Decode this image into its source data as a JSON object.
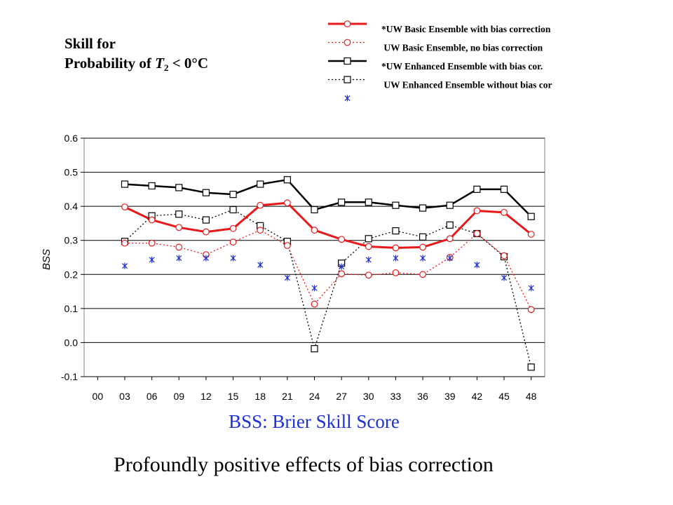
{
  "title": {
    "line1": "Skill for",
    "line2_prefix": "Probability of ",
    "line2_var": "T",
    "line2_sub": "2",
    "line2_suffix": " < 0°C"
  },
  "captions": {
    "bss": "BSS:  Brier Skill Score",
    "effect": "Profoundly positive effects of bias correction"
  },
  "colors": {
    "red": "#e8191b",
    "black": "#000000",
    "blue": "#1a2bd0",
    "grid": "#000000"
  },
  "legend": [
    {
      "label": "*UW Basic Ensemble with bias correction",
      "style": "red-solid-circle"
    },
    {
      "label": " UW Basic Ensemble, no bias correction",
      "style": "red-dotted-circle"
    },
    {
      "label": "*UW Enhanced Ensemble with bias cor.",
      "style": "black-solid-square"
    },
    {
      "label": " UW Enhanced Ensemble without bias cor",
      "style": "black-dotted-square"
    },
    {
      "label": "",
      "style": "blue-asterisk"
    }
  ],
  "chart_data": {
    "type": "line",
    "ylabel": "BSS",
    "xlabel": "",
    "ylim": [
      -0.1,
      0.6
    ],
    "yticks": [
      "-0.1",
      "0.0",
      "0.1",
      "0.2",
      "0.3",
      "0.4",
      "0.5",
      "0.6"
    ],
    "categories": [
      "00",
      "03",
      "06",
      "09",
      "12",
      "15",
      "18",
      "21",
      "24",
      "27",
      "30",
      "33",
      "36",
      "39",
      "42",
      "45",
      "48"
    ],
    "grid": "horizontal",
    "series": [
      {
        "name": "*UW Enhanced Ensemble with bias cor.",
        "style": "black-solid-square",
        "values": [
          null,
          0.465,
          0.46,
          0.455,
          0.44,
          0.435,
          0.465,
          0.478,
          0.39,
          0.412,
          0.412,
          0.403,
          0.395,
          0.403,
          0.45,
          0.45,
          0.37
        ]
      },
      {
        "name": "*UW Basic Ensemble with bias correction",
        "style": "red-solid-circle",
        "values": [
          null,
          0.398,
          0.36,
          0.338,
          0.325,
          0.335,
          0.403,
          0.41,
          0.33,
          0.303,
          0.282,
          0.278,
          0.28,
          0.305,
          0.387,
          0.382,
          0.318
        ]
      },
      {
        "name": "UW Basic Ensemble, no bias correction",
        "style": "red-dotted-circle",
        "values": [
          null,
          0.292,
          0.292,
          0.28,
          0.258,
          0.295,
          0.33,
          0.285,
          0.113,
          0.202,
          0.198,
          0.205,
          0.2,
          0.25,
          0.32,
          0.255,
          0.097
        ]
      },
      {
        "name": "UW Enhanced Ensemble without bias cor",
        "style": "black-dotted-square",
        "values": [
          null,
          0.297,
          0.372,
          0.377,
          0.36,
          0.39,
          0.343,
          0.297,
          -0.018,
          0.233,
          0.305,
          0.328,
          0.31,
          0.345,
          0.32,
          0.252,
          -0.072
        ]
      },
      {
        "style": "blue-asterisk",
        "values": [
          null,
          0.225,
          0.243,
          0.248,
          0.248,
          0.248,
          0.228,
          0.19,
          0.16,
          0.223,
          0.243,
          0.248,
          0.248,
          0.248,
          0.228,
          0.19,
          0.16
        ]
      }
    ]
  }
}
